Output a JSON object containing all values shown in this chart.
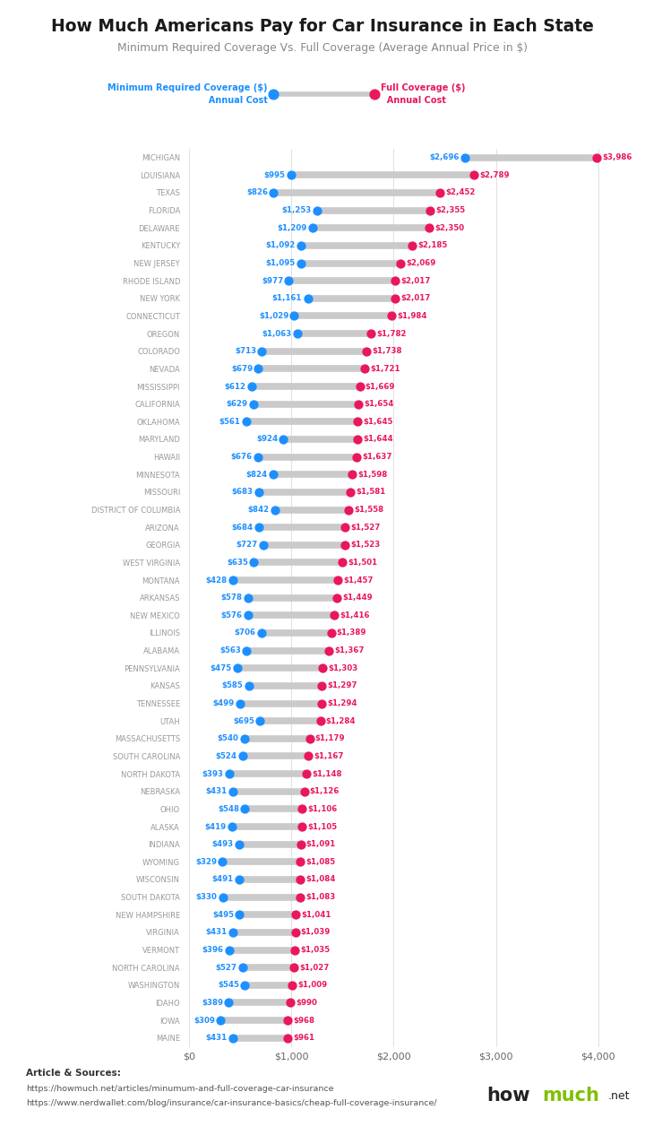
{
  "title": "How Much Americans Pay for Car Insurance in Each State",
  "subtitle": "Minimum Required Coverage Vs. Full Coverage (Average Annual Price in $)",
  "states": [
    "MICHIGAN",
    "LOUISIANA",
    "TEXAS",
    "FLORIDA",
    "DELAWARE",
    "KENTUCKY",
    "NEW JERSEY",
    "RHODE ISLAND",
    "NEW YORK",
    "CONNECTICUT",
    "OREGON",
    "COLORADO",
    "NEVADA",
    "MISSISSIPPI",
    "CALIFORNIA",
    "OKLAHOMA",
    "MARYLAND",
    "HAWAII",
    "MINNESOTA",
    "MISSOURI",
    "DISTRICT OF COLUMBIA",
    "ARIZONA",
    "GEORGIA",
    "WEST VIRGINIA",
    "MONTANA",
    "ARKANSAS",
    "NEW MEXICO",
    "ILLINOIS",
    "ALABAMA",
    "PENNSYLVANIA",
    "KANSAS",
    "TENNESSEE",
    "UTAH",
    "MASSACHUSETTS",
    "SOUTH CAROLINA",
    "NORTH DAKOTA",
    "NEBRASKA",
    "OHIO",
    "ALASKA",
    "INDIANA",
    "WYOMING",
    "WISCONSIN",
    "SOUTH DAKOTA",
    "NEW HAMPSHIRE",
    "VIRGINIA",
    "VERMONT",
    "NORTH CAROLINA",
    "WASHINGTON",
    "IDAHO",
    "IOWA",
    "MAINE"
  ],
  "min_coverage": [
    2696,
    995,
    826,
    1253,
    1209,
    1092,
    1095,
    977,
    1161,
    1029,
    1063,
    713,
    679,
    612,
    629,
    561,
    924,
    676,
    824,
    683,
    842,
    684,
    727,
    635,
    428,
    578,
    576,
    706,
    563,
    475,
    585,
    499,
    695,
    540,
    524,
    393,
    431,
    548,
    419,
    493,
    329,
    491,
    330,
    495,
    431,
    396,
    527,
    545,
    389,
    309,
    431
  ],
  "full_coverage": [
    3986,
    2789,
    2452,
    2355,
    2350,
    2185,
    2069,
    2017,
    2017,
    1984,
    1782,
    1738,
    1721,
    1669,
    1654,
    1645,
    1644,
    1637,
    1598,
    1581,
    1558,
    1527,
    1523,
    1501,
    1457,
    1449,
    1416,
    1389,
    1367,
    1303,
    1297,
    1294,
    1284,
    1179,
    1167,
    1148,
    1126,
    1106,
    1105,
    1091,
    1085,
    1084,
    1083,
    1041,
    1039,
    1035,
    1027,
    1009,
    990,
    968,
    961
  ],
  "blue_color": "#1E8FFF",
  "pink_color": "#E8185A",
  "bar_color": "#CACACA",
  "bg_color": "#FFFFFF",
  "title_color": "#1a1a1a",
  "subtitle_color": "#888888",
  "state_color": "#999999",
  "xlabel_color": "#666666",
  "x_ticks": [
    0,
    1000,
    2000,
    3000,
    4000
  ],
  "x_tick_labels": [
    "$0",
    "$1,000",
    "$2,000",
    "$3,000",
    "$4,000"
  ],
  "xlim": [
    -50,
    4300
  ]
}
